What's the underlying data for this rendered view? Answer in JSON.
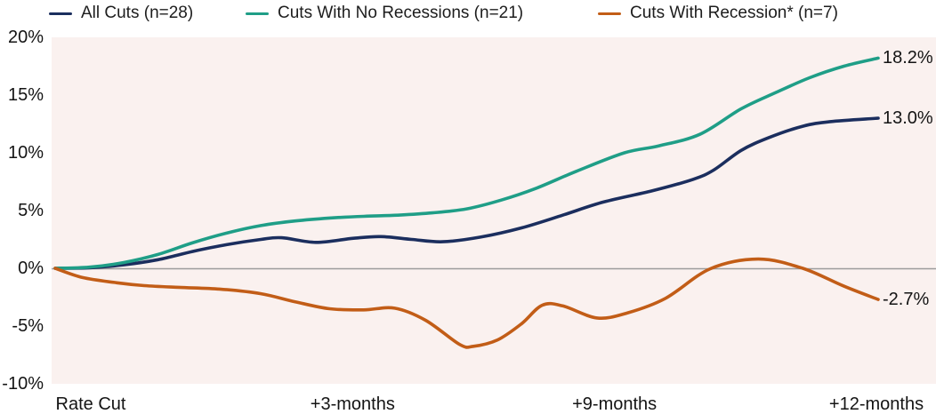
{
  "legend": {
    "items": [
      {
        "label": "All Cuts (n=28)",
        "color": "#1b2e5e"
      },
      {
        "label": "Cuts With No Recessions (n=21)",
        "color": "#1f9e87"
      },
      {
        "label": "Cuts With Recession* (n=7)",
        "color": "#c25d17"
      }
    ]
  },
  "colors": {
    "plot_background": "#faf1ef",
    "zero_line": "#9c9c9c",
    "text": "#141414",
    "page_background": "#ffffff"
  },
  "chart_data": {
    "type": "line",
    "title": "",
    "xlabel": "",
    "ylabel": "",
    "x_unit": "months after rate cut",
    "xlim": [
      0,
      12
    ],
    "ylim": [
      -10,
      20
    ],
    "grid": "zero-baseline-only",
    "legend_position": "top",
    "x_tick_labels": [
      "Rate Cut",
      "+3-months",
      "+9-months",
      "+12-months"
    ],
    "y_ticks": [
      {
        "label": "20%",
        "value": 20
      },
      {
        "label": "15%",
        "value": 15
      },
      {
        "label": "10%",
        "value": 10
      },
      {
        "label": "5%",
        "value": 5
      },
      {
        "label": "0%",
        "value": 0
      },
      {
        "label": "-5%",
        "value": -5
      },
      {
        "label": "-10%",
        "value": -10
      }
    ],
    "series": [
      {
        "name": "All Cuts (n=28)",
        "color": "#1b2e5e",
        "end_label": "13.0%",
        "end_value": 13.0,
        "points": [
          [
            0,
            0
          ],
          [
            0.5,
            0.05
          ],
          [
            1,
            0.3
          ],
          [
            1.5,
            0.75
          ],
          [
            2,
            1.45
          ],
          [
            2.5,
            2.05
          ],
          [
            3,
            2.5
          ],
          [
            3.3,
            2.65
          ],
          [
            3.8,
            2.25
          ],
          [
            4.35,
            2.6
          ],
          [
            4.75,
            2.75
          ],
          [
            5.2,
            2.5
          ],
          [
            5.65,
            2.3
          ],
          [
            6.2,
            2.7
          ],
          [
            6.8,
            3.5
          ],
          [
            7.4,
            4.6
          ],
          [
            8,
            5.75
          ],
          [
            8.7,
            6.7
          ],
          [
            9.3,
            7.7
          ],
          [
            9.6,
            8.5
          ],
          [
            10,
            10.2
          ],
          [
            10.4,
            11.3
          ],
          [
            10.9,
            12.3
          ],
          [
            11.3,
            12.7
          ],
          [
            12,
            13.0
          ]
        ]
      },
      {
        "name": "Cuts With No Recessions (n=21)",
        "color": "#1f9e87",
        "end_label": "18.2%",
        "end_value": 18.2,
        "points": [
          [
            0,
            0
          ],
          [
            0.5,
            0.1
          ],
          [
            1,
            0.5
          ],
          [
            1.5,
            1.2
          ],
          [
            2,
            2.2
          ],
          [
            2.5,
            3.05
          ],
          [
            3,
            3.7
          ],
          [
            3.5,
            4.1
          ],
          [
            4,
            4.35
          ],
          [
            4.5,
            4.5
          ],
          [
            5,
            4.6
          ],
          [
            5.5,
            4.8
          ],
          [
            6,
            5.15
          ],
          [
            6.5,
            5.9
          ],
          [
            7,
            6.9
          ],
          [
            7.6,
            8.4
          ],
          [
            8.3,
            10.0
          ],
          [
            8.8,
            10.6
          ],
          [
            9.4,
            11.6
          ],
          [
            10,
            13.8
          ],
          [
            10.5,
            15.2
          ],
          [
            11,
            16.5
          ],
          [
            11.5,
            17.5
          ],
          [
            12,
            18.2
          ]
        ]
      },
      {
        "name": "Cuts With Recession* (n=7)",
        "color": "#c25d17",
        "end_label": "-2.7%",
        "end_value": -2.7,
        "points": [
          [
            0,
            0
          ],
          [
            0.4,
            -0.8
          ],
          [
            0.9,
            -1.25
          ],
          [
            1.3,
            -1.5
          ],
          [
            1.8,
            -1.65
          ],
          [
            2.4,
            -1.8
          ],
          [
            3,
            -2.2
          ],
          [
            3.5,
            -2.9
          ],
          [
            4,
            -3.5
          ],
          [
            4.5,
            -3.6
          ],
          [
            4.95,
            -3.45
          ],
          [
            5.4,
            -4.5
          ],
          [
            5.9,
            -6.6
          ],
          [
            6.1,
            -6.75
          ],
          [
            6.45,
            -6.2
          ],
          [
            6.8,
            -4.8
          ],
          [
            7.1,
            -3.2
          ],
          [
            7.4,
            -3.25
          ],
          [
            7.9,
            -4.3
          ],
          [
            8.35,
            -3.85
          ],
          [
            8.9,
            -2.6
          ],
          [
            9.55,
            -0.05
          ],
          [
            10.25,
            0.8
          ],
          [
            10.9,
            0.0
          ],
          [
            11.5,
            -1.55
          ],
          [
            12,
            -2.7
          ]
        ]
      }
    ]
  }
}
